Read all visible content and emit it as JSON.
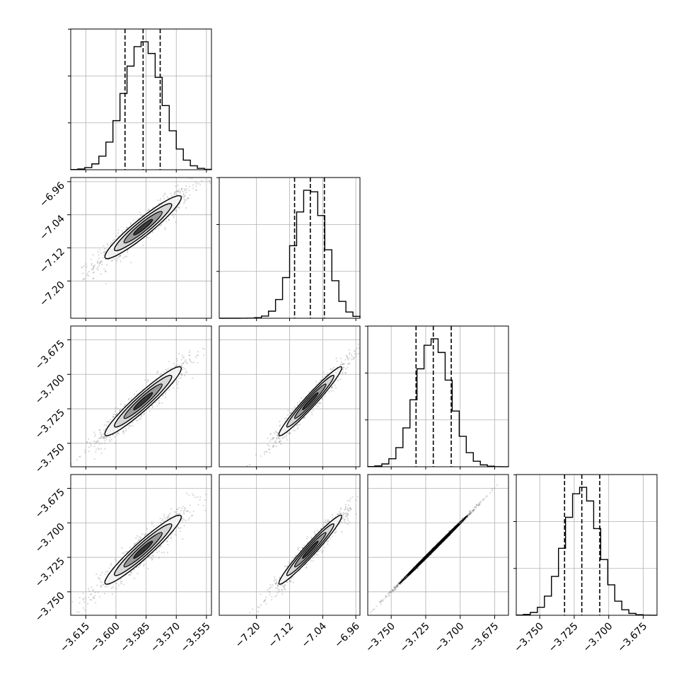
{
  "chart_data": {
    "type": "corner",
    "description_free": true,
    "params": [
      {
        "mean": -3.5865,
        "sd": 0.0095,
        "quantiles": [
          -3.5955,
          -3.5865,
          -3.578
        ],
        "range": [
          -3.6225,
          -3.5525
        ],
        "ticks": [
          -3.615,
          -3.6,
          -3.585,
          -3.57,
          -3.555
        ],
        "tick_labels": [
          "−3.615",
          "−3.600",
          "−3.585",
          "−3.570",
          "−3.555"
        ]
      },
      {
        "mean": -7.07,
        "sd": 0.038,
        "quantiles": [
          -7.108,
          -7.07,
          -7.036
        ],
        "range": [
          -7.29,
          -6.95
        ],
        "ticks": [
          -7.2,
          -7.12,
          -7.04,
          -6.96
        ],
        "tick_labels": [
          "−7.20",
          "−7.12",
          "−7.04",
          "−6.96"
        ]
      },
      {
        "mean": -3.7195,
        "sd": 0.0125,
        "quantiles": [
          -3.732,
          -3.7195,
          -3.7065
        ],
        "range": [
          -3.767,
          -3.665
        ],
        "ticks": [
          -3.75,
          -3.725,
          -3.7,
          -3.675
        ],
        "tick_labels": [
          "−3.750",
          "−3.725",
          "−3.700",
          "−3.675"
        ]
      },
      {
        "mean": -3.7195,
        "sd": 0.0125,
        "quantiles": [
          -3.732,
          -3.7195,
          -3.7065
        ],
        "range": [
          -3.767,
          -3.665
        ],
        "ticks": [
          -3.75,
          -3.725,
          -3.7,
          -3.675
        ],
        "tick_labels": [
          "−3.750",
          "−3.725",
          "−3.700",
          "−3.675"
        ]
      }
    ],
    "correlations": [
      [
        1,
        0.94,
        0.95,
        0.95
      ],
      [
        0.94,
        1,
        0.97,
        0.97
      ],
      [
        0.95,
        0.97,
        1,
        0.999
      ],
      [
        0.95,
        0.97,
        0.999,
        1
      ]
    ],
    "grid": true,
    "colors": {
      "points": "#777777",
      "lines": "#000000",
      "grid": "#b0b0b0"
    }
  }
}
